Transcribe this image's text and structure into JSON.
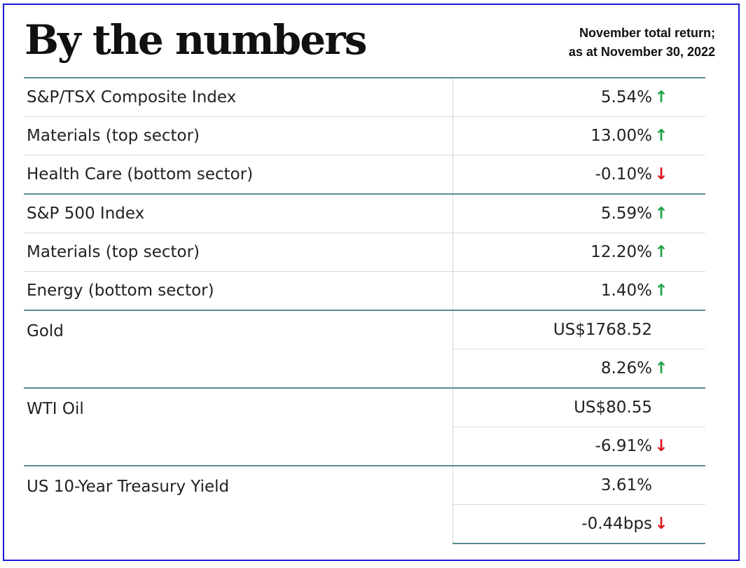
{
  "header": {
    "title": "By the numbers",
    "subtitle_line1": "November total return;",
    "subtitle_line2": "as at November 30, 2022"
  },
  "rows": [
    {
      "label": "S&P/TSX Composite Index",
      "value": "5.54%",
      "direction": "up"
    },
    {
      "label": "Materials (top sector)",
      "value": "13.00%",
      "direction": "up"
    },
    {
      "label": "Health Care (bottom sector)",
      "value": "-0.10%",
      "direction": "down"
    },
    {
      "label": "S&P 500 Index",
      "value": "5.59%",
      "direction": "up"
    },
    {
      "label": "Materials (top sector)",
      "value": "12.20%",
      "direction": "up"
    },
    {
      "label": "Energy (bottom sector)",
      "value": "1.40%",
      "direction": "up"
    },
    {
      "label": "Gold",
      "value": "US$1768.52",
      "change": "8.26%",
      "direction": "up"
    },
    {
      "label": "WTI Oil",
      "value": "US$80.55",
      "change": "-6.91%",
      "direction": "down"
    },
    {
      "label": "US 10-Year Treasury Yield",
      "value": "3.61%",
      "change": "-0.44bps",
      "direction": "down"
    }
  ],
  "icons": {
    "up": "arrow-up-icon",
    "down": "arrow-down-icon"
  },
  "colors": {
    "up": "#1fa548",
    "down": "#e0141e",
    "rule": "#5a8c93",
    "frame": "#1a1adb"
  }
}
